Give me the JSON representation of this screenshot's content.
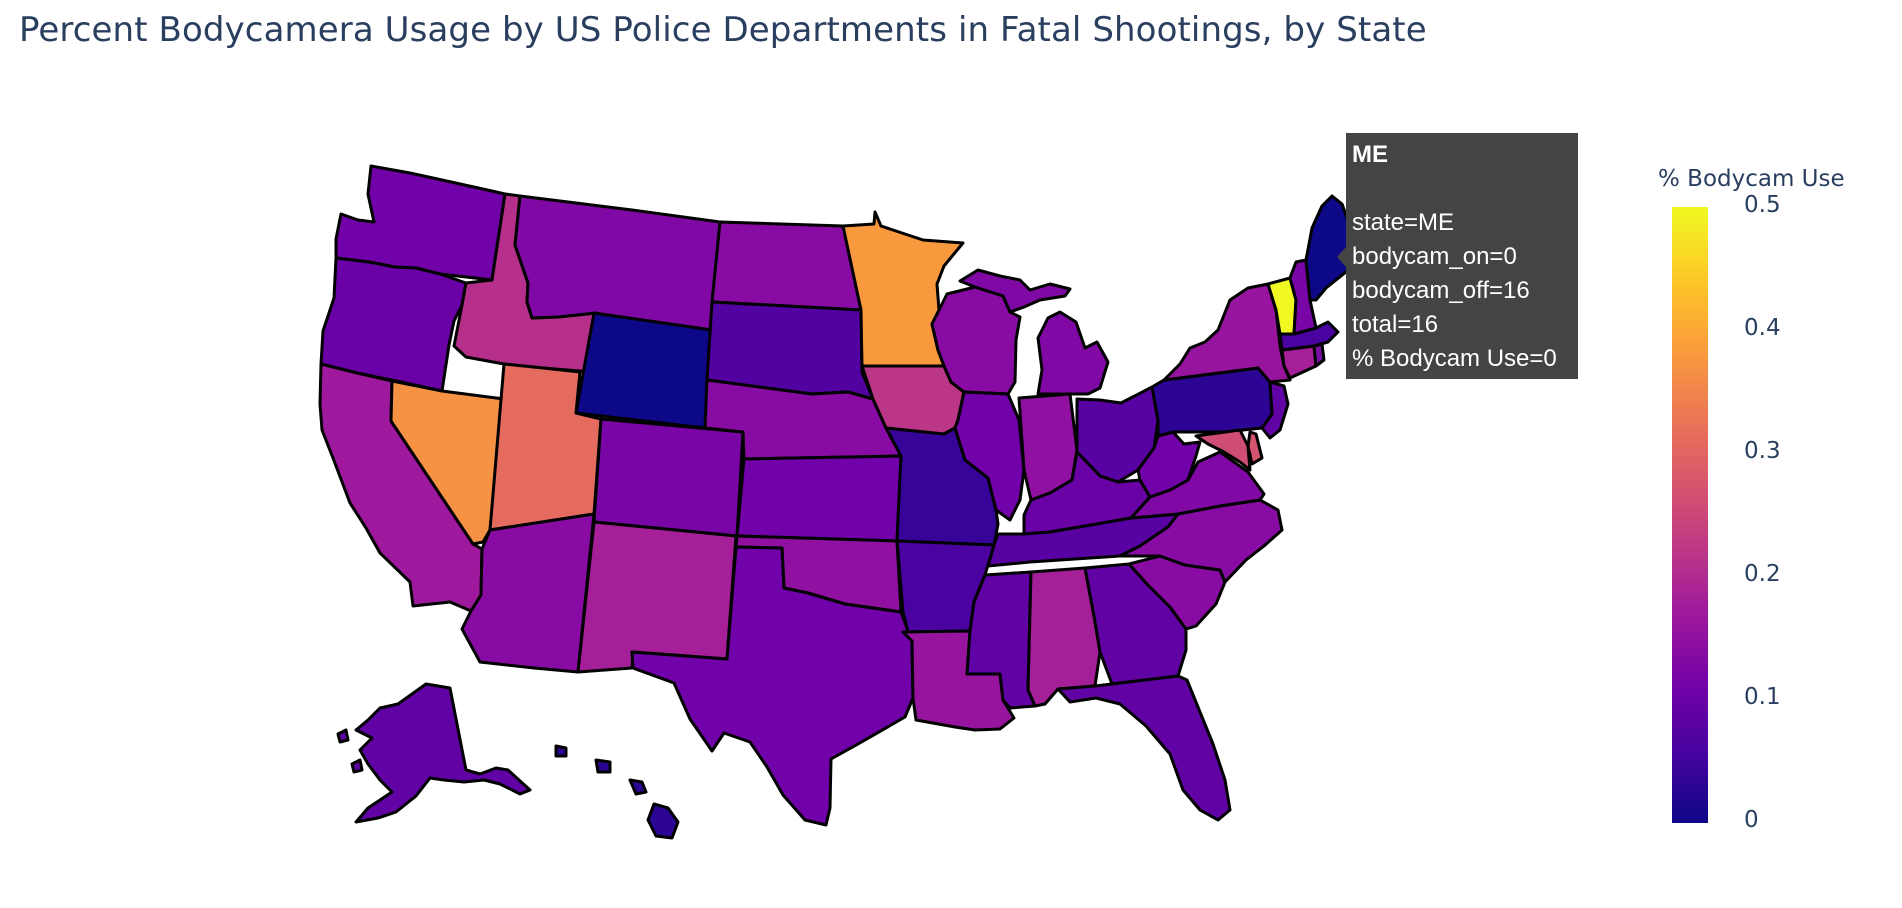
{
  "title": "Percent Bodycamera Usage by US Police Departments in Fatal Shootings, by State",
  "colorbar": {
    "title": "% Bodycam Use",
    "ticks": [
      "0.5",
      "0.4",
      "0.3",
      "0.2",
      "0.1",
      "0"
    ]
  },
  "tooltip": {
    "state": "ME",
    "lines": [
      "state=ME",
      "bodycam_on=0",
      "bodycam_off=16",
      "total=16",
      "% Bodycam Use=0"
    ]
  },
  "colors": {
    "scale": [
      "#0d0887",
      "#46039f",
      "#7201a8",
      "#9c179e",
      "#bd3786",
      "#d8576b",
      "#ed7953",
      "#fb9f3a",
      "#fdca26",
      "#f0f921"
    ],
    "tooltip_bg": "#444444",
    "title_text": "#2a3f5f"
  },
  "chart_data": {
    "type": "choropleth",
    "scope": "usa",
    "title": "Percent Bodycamera Usage by US Police Departments in Fatal Shootings, by State",
    "colorbar_title": "% Bodycam Use",
    "color_range": [
      0,
      0.5
    ],
    "colorscale": "Plasma",
    "values": {
      "WA": 0.11,
      "OR": 0.1,
      "CA": 0.17,
      "NV": 0.37,
      "ID": 0.21,
      "MT": 0.13,
      "WY": 0.0,
      "UT": 0.31,
      "AZ": 0.14,
      "CO": 0.12,
      "NM": 0.18,
      "ND": 0.14,
      "SD": 0.07,
      "NE": 0.14,
      "KS": 0.11,
      "OK": 0.15,
      "TX": 0.11,
      "MN": 0.38,
      "IA": 0.22,
      "MO": 0.04,
      "AR": 0.06,
      "LA": 0.16,
      "WI": 0.14,
      "IL": 0.11,
      "MI": 0.13,
      "IN": 0.15,
      "OH": 0.08,
      "KY": 0.1,
      "TN": 0.08,
      "MS": 0.09,
      "AL": 0.18,
      "GA": 0.09,
      "FL": 0.09,
      "SC": 0.14,
      "NC": 0.14,
      "VA": 0.13,
      "WV": 0.11,
      "PA": 0.03,
      "NY": 0.16,
      "VT": 0.5,
      "NH": 0.12,
      "ME": 0.0,
      "MA": 0.06,
      "CT": 0.18,
      "NJ": 0.09,
      "MD": 0.26,
      "DE": 0.27,
      "AK": 0.09,
      "HI": 0.03
    },
    "hover": {
      "state": "ME",
      "bodycam_on": 0,
      "bodycam_off": 16,
      "total": 16,
      "pct_bodycam_use": 0
    }
  }
}
